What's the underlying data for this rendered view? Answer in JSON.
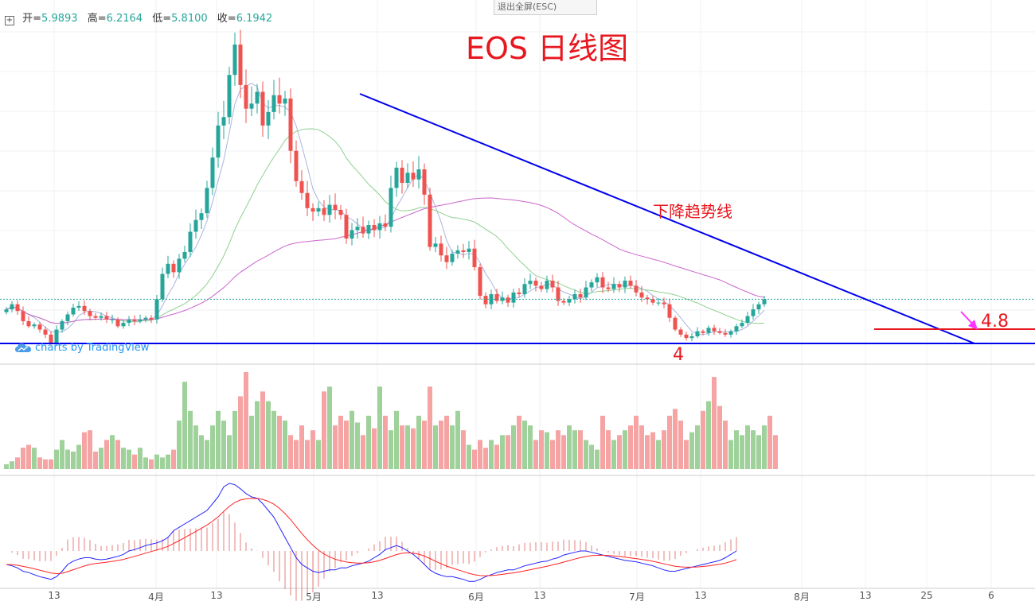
{
  "header": {
    "toggle_icon": "plus-square-icon",
    "open_label": "开=",
    "open_value": "5.9893",
    "high_label": "高=",
    "high_value": "6.2164",
    "low_label": "低=",
    "low_value": "5.8100",
    "close_label": "收=",
    "close_value": "6.1942",
    "esc_label": "退出全屏(ESC)"
  },
  "branding": {
    "label": "charts by TradingView",
    "icon": "tradingview-cloud-icon"
  },
  "colors": {
    "up": "#26a69a",
    "down": "#ef5350",
    "vol_up": "#9fd19b",
    "vol_down": "#f5a3a3",
    "trendline": "#0000ee",
    "annotation": "#e8171f",
    "macd_fast": "#2222ff",
    "macd_slow": "#ff2222",
    "ma_fast": "#aab4e0",
    "ma_mid": "#8fd08f",
    "ma_slow": "#cc66cc",
    "arrow": "#ff33ff"
  },
  "chart_data": {
    "type": "candlestick",
    "title": "EOS 日线图",
    "annotations": {
      "trendline_label": "下降趋势线",
      "resistance_level": "4.8",
      "support_level": "4"
    },
    "x_ticks": [
      "13",
      "4月",
      "13",
      "5月",
      "13",
      "6月",
      "13",
      "7月",
      "13",
      "8月",
      "13",
      "25",
      "6"
    ],
    "price_range": [
      3.2,
      23.0
    ],
    "closes": [
      5.6,
      5.9,
      5.5,
      4.9,
      4.6,
      4.7,
      4.4,
      4.1,
      3.6,
      4.4,
      4.9,
      5.3,
      5.7,
      5.8,
      5.5,
      5.2,
      5.1,
      5.2,
      5.0,
      5.0,
      4.6,
      4.8,
      5.0,
      4.9,
      5.0,
      5.1,
      5.0,
      6.2,
      7.7,
      8.3,
      7.8,
      8.6,
      9.0,
      10.2,
      10.9,
      11.3,
      12.8,
      14.6,
      16.5,
      17.0,
      19.5,
      21.3,
      18.9,
      17.5,
      17.8,
      18.5,
      16.5,
      17.3,
      18.3,
      17.8,
      18.1,
      15.0,
      13.2,
      12.5,
      11.6,
      11.4,
      11.6,
      11.2,
      11.8,
      11.5,
      11.2,
      9.8,
      10.3,
      10.5,
      10.1,
      10.6,
      10.3,
      10.7,
      10.5,
      12.8,
      14.0,
      13.1,
      13.7,
      13.3,
      13.9,
      12.4,
      9.3,
      9.5,
      8.8,
      8.4,
      8.9,
      9.1,
      9.0,
      9.2,
      8.1,
      6.4,
      5.9,
      6.5,
      6.1,
      6.3,
      6.0,
      6.6,
      6.5,
      7.1,
      7.3,
      7.0,
      6.8,
      7.3,
      6.9,
      6.1,
      6.0,
      6.2,
      6.5,
      6.3,
      6.9,
      7.2,
      7.5,
      6.9,
      6.8,
      7.1,
      6.9,
      7.3,
      7.0,
      6.6,
      6.3,
      6.2,
      6.0,
      6.0,
      5.9,
      5.1,
      4.4,
      4.1,
      3.9,
      4.0,
      4.3,
      4.2,
      4.5,
      4.3,
      4.2,
      4.1,
      4.3,
      4.6,
      4.8,
      5.2,
      5.6,
      5.9,
      6.2
    ],
    "ma_periods": [
      5,
      20,
      60
    ],
    "volume_relative": [
      0.05,
      0.08,
      0.12,
      0.22,
      0.25,
      0.22,
      0.12,
      0.1,
      0.1,
      0.2,
      0.3,
      0.2,
      0.18,
      0.25,
      0.38,
      0.4,
      0.18,
      0.22,
      0.3,
      0.35,
      0.3,
      0.22,
      0.2,
      0.15,
      0.22,
      0.12,
      0.1,
      0.15,
      0.12,
      0.15,
      0.2,
      0.5,
      0.9,
      0.6,
      0.45,
      0.35,
      0.3,
      0.45,
      0.6,
      0.5,
      0.35,
      0.6,
      0.75,
      1.0,
      0.55,
      0.7,
      0.8,
      0.7,
      0.6,
      0.55,
      0.5,
      0.35,
      0.3,
      0.45,
      0.3,
      0.4,
      0.3,
      0.8,
      0.85,
      0.45,
      0.55,
      0.5,
      0.6,
      0.48,
      0.35,
      0.55,
      0.42,
      0.85,
      0.55,
      0.4,
      0.6,
      0.45,
      0.45,
      0.42,
      0.55,
      0.5,
      0.85,
      0.45,
      0.5,
      0.55,
      0.45,
      0.6,
      0.4,
      0.25,
      0.2,
      0.3,
      0.22,
      0.3,
      0.25,
      0.35,
      0.35,
      0.45,
      0.55,
      0.5,
      0.45,
      0.3,
      0.4,
      0.38,
      0.3,
      0.4,
      0.35,
      0.45,
      0.4,
      0.4,
      0.3,
      0.25,
      0.2,
      0.55,
      0.4,
      0.3,
      0.35,
      0.4,
      0.45,
      0.55,
      0.45,
      0.35,
      0.38,
      0.3,
      0.4,
      0.55,
      0.62,
      0.5,
      0.3,
      0.38,
      0.45,
      0.6,
      0.7,
      0.95,
      0.65,
      0.5,
      0.3,
      0.4,
      0.35,
      0.45,
      0.4,
      0.35,
      0.45,
      0.55,
      0.35
    ],
    "macd_relative": [
      -0.2,
      -0.22,
      -0.25,
      -0.3,
      -0.32,
      -0.35,
      -0.38,
      -0.4,
      -0.42,
      -0.38,
      -0.3,
      -0.2,
      -0.15,
      -0.12,
      -0.1,
      -0.1,
      -0.12,
      -0.13,
      -0.12,
      -0.1,
      -0.08,
      -0.05,
      0.0,
      0.02,
      0.05,
      0.08,
      0.1,
      0.12,
      0.15,
      0.2,
      0.3,
      0.35,
      0.4,
      0.45,
      0.5,
      0.55,
      0.6,
      0.7,
      0.8,
      0.95,
      1.0,
      0.98,
      0.92,
      0.85,
      0.8,
      0.78,
      0.7,
      0.6,
      0.5,
      0.35,
      0.2,
      0.05,
      -0.1,
      -0.2,
      -0.25,
      -0.3,
      -0.32,
      -0.3,
      -0.28,
      -0.28,
      -0.25,
      -0.25,
      -0.22,
      -0.2,
      -0.18,
      -0.15,
      -0.1,
      -0.05,
      0.02,
      0.05,
      0.08,
      0.05,
      0.0,
      -0.05,
      -0.12,
      -0.2,
      -0.28,
      -0.33,
      -0.36,
      -0.38,
      -0.38,
      -0.4,
      -0.42,
      -0.45,
      -0.45,
      -0.42,
      -0.38,
      -0.35,
      -0.32,
      -0.3,
      -0.28,
      -0.28,
      -0.25,
      -0.22,
      -0.2,
      -0.18,
      -0.16,
      -0.15,
      -0.12,
      -0.1,
      -0.06,
      -0.04,
      -0.02,
      0.0,
      0.0,
      -0.02,
      -0.04,
      -0.06,
      -0.08,
      -0.1,
      -0.12,
      -0.14,
      -0.15,
      -0.16,
      -0.18,
      -0.2,
      -0.22,
      -0.25,
      -0.28,
      -0.3,
      -0.3,
      -0.28,
      -0.26,
      -0.24,
      -0.22,
      -0.2,
      -0.18,
      -0.16,
      -0.14,
      -0.1,
      -0.05,
      0.0
    ]
  }
}
